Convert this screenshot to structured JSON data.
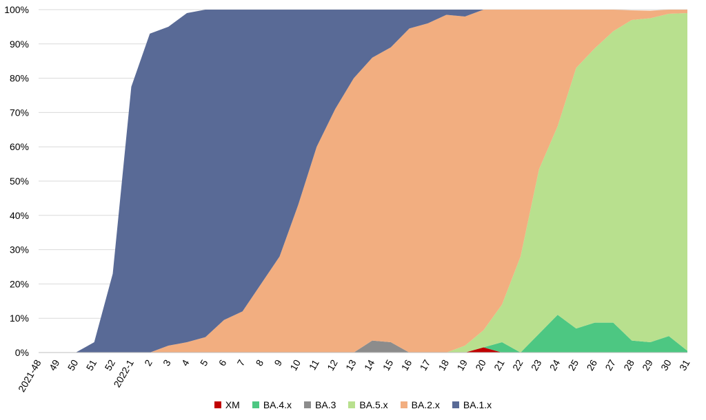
{
  "chart_data": {
    "type": "area",
    "stacked": true,
    "title": "",
    "xlabel": "",
    "ylabel": "",
    "ylim": [
      0,
      100
    ],
    "y_ticks": [
      "0%",
      "10%",
      "20%",
      "30%",
      "40%",
      "50%",
      "60%",
      "70%",
      "80%",
      "90%",
      "100%"
    ],
    "grid": "horizontal",
    "legend_position": "bottom",
    "categories": [
      "2021-48",
      "49",
      "50",
      "51",
      "52",
      "2022-1",
      "2",
      "3",
      "4",
      "5",
      "6",
      "7",
      "8",
      "9",
      "10",
      "11",
      "12",
      "13",
      "14",
      "15",
      "16",
      "17",
      "18",
      "19",
      "20",
      "21",
      "22",
      "23",
      "24",
      "25",
      "26",
      "27",
      "28",
      "29",
      "30",
      "31"
    ],
    "series": [
      {
        "name": "XM",
        "color": "#c00000",
        "values": [
          0,
          0,
          0,
          0,
          0,
          0,
          0,
          0,
          0,
          0,
          0,
          0,
          0,
          0,
          0,
          0,
          0,
          0,
          0,
          0,
          0,
          0,
          0,
          0,
          1.5,
          0,
          0,
          0,
          0,
          0,
          0,
          0,
          0,
          0,
          0,
          0
        ]
      },
      {
        "name": "BA.4.x",
        "color": "#4dc782",
        "values": [
          0,
          0,
          0,
          0,
          0,
          0,
          0,
          0,
          0,
          0,
          0,
          0,
          0,
          0,
          0,
          0,
          0,
          0,
          0,
          0,
          0,
          0,
          0,
          0,
          0,
          3,
          0,
          5.5,
          11,
          7,
          8.7,
          8.7,
          3.5,
          3,
          4.8,
          0.5
        ]
      },
      {
        "name": "BA.3",
        "color": "#8c8c8c",
        "values": [
          0,
          0,
          0,
          0,
          0,
          0,
          0,
          0,
          0,
          0,
          0,
          0,
          0,
          0,
          0,
          0,
          0,
          0,
          3.5,
          3,
          0,
          0,
          0,
          0,
          0,
          0,
          0,
          0,
          0,
          0,
          0,
          0,
          0,
          0,
          0,
          0
        ]
      },
      {
        "name": "BA.5.x",
        "color": "#b8e08e",
        "values": [
          0,
          0,
          0,
          0,
          0,
          0,
          0,
          0,
          0,
          0,
          0,
          0,
          0,
          0,
          0,
          0,
          0,
          0,
          0,
          0,
          0,
          0,
          0,
          2,
          5,
          11,
          28,
          48,
          55,
          76,
          80,
          85,
          93.5,
          94.5,
          94,
          98.5
        ]
      },
      {
        "name": "BA.2.x",
        "color": "#f2ae80",
        "values": [
          0,
          0,
          0,
          0,
          0,
          0,
          0,
          2,
          3,
          4.5,
          9.5,
          12,
          20,
          28,
          43,
          60,
          71,
          80,
          82.5,
          86,
          94.5,
          96,
          98.5,
          96,
          93.5,
          86,
          72,
          46.5,
          34,
          17,
          11.3,
          6.3,
          2.8,
          2.2,
          1.2,
          1
        ]
      },
      {
        "name": "BA.1.x",
        "color": "#596a96",
        "values": [
          0,
          0,
          0,
          3,
          23,
          77.5,
          93,
          93,
          96,
          95.5,
          90.5,
          88,
          80,
          72,
          57,
          40,
          29,
          20,
          14,
          11,
          5.5,
          4,
          1.5,
          2,
          0,
          0,
          0,
          0,
          0,
          0,
          0,
          0,
          0,
          0,
          0,
          0
        ]
      }
    ]
  },
  "legend": {
    "items": [
      {
        "label": "XM",
        "color": "#c00000"
      },
      {
        "label": "BA.4.x",
        "color": "#4dc782"
      },
      {
        "label": "BA.3",
        "color": "#8c8c8c"
      },
      {
        "label": "BA.5.x",
        "color": "#b8e08e"
      },
      {
        "label": "BA.2.x",
        "color": "#f2ae80"
      },
      {
        "label": "BA.1.x",
        "color": "#596a96"
      }
    ]
  }
}
